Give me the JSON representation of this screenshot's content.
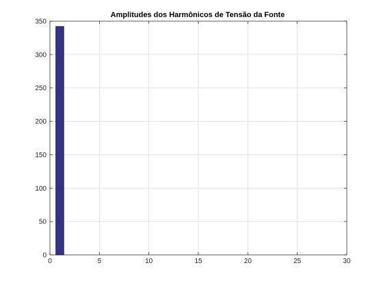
{
  "chart_data": {
    "type": "bar",
    "title": "Amplitudes dos Harmônicos de Tensão da Fonte",
    "xlabel": "",
    "ylabel": "",
    "x": [
      1
    ],
    "values": [
      342
    ],
    "xlim": [
      0,
      30
    ],
    "ylim": [
      0,
      350
    ],
    "xticks": [
      0,
      5,
      10,
      15,
      20,
      25,
      30
    ],
    "yticks": [
      0,
      50,
      100,
      150,
      200,
      250,
      300,
      350
    ],
    "xtick_labels": [
      "0",
      "5",
      "10",
      "15",
      "20",
      "25",
      "30"
    ],
    "ytick_labels": [
      "0",
      "50",
      "100",
      "150",
      "200",
      "250",
      "300",
      "350"
    ],
    "bar_width": 0.8,
    "grid": true,
    "legend": "none",
    "colors": {
      "bar_fill": "#33338c",
      "bar_edge": "#000000",
      "grid": "#d9d9d9",
      "axes": "#262626"
    }
  }
}
